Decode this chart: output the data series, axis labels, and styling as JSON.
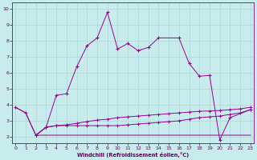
{
  "xlabel": "Windchill (Refroidissement éolien,°C)",
  "background_color": "#c8ecec",
  "grid_color": "#a8d8d8",
  "line_color": "#990099",
  "x_ticks": [
    0,
    1,
    2,
    3,
    4,
    5,
    6,
    7,
    8,
    9,
    10,
    11,
    12,
    13,
    14,
    15,
    16,
    17,
    18,
    19,
    20,
    21,
    22,
    23
  ],
  "y_ticks": [
    2,
    3,
    4,
    5,
    6,
    7,
    8,
    9,
    10
  ],
  "xlim": [
    -0.3,
    23.3
  ],
  "ylim": [
    1.6,
    10.4
  ],
  "line1_x": [
    0,
    1,
    2,
    3,
    4,
    5,
    6,
    7,
    8,
    9,
    10,
    11,
    12,
    13,
    14,
    16,
    17,
    18,
    19,
    20,
    21,
    23
  ],
  "line1_y": [
    3.85,
    3.5,
    2.1,
    2.6,
    4.6,
    4.7,
    6.4,
    7.7,
    8.2,
    9.8,
    7.5,
    7.85,
    7.4,
    7.6,
    8.2,
    8.2,
    6.6,
    5.8,
    5.85,
    1.8,
    3.2,
    3.7
  ],
  "line2_x": [
    0,
    1,
    2,
    3,
    4,
    5,
    6,
    7,
    8,
    9,
    10,
    11,
    12,
    13,
    14,
    15,
    16,
    17,
    18,
    19,
    20,
    21,
    22,
    23
  ],
  "line2_y": [
    3.85,
    3.5,
    2.1,
    2.1,
    2.1,
    2.1,
    2.1,
    2.1,
    2.1,
    2.1,
    2.1,
    2.1,
    2.1,
    2.1,
    2.1,
    2.1,
    2.1,
    2.1,
    2.1,
    2.1,
    2.1,
    2.1,
    2.1,
    2.1
  ],
  "line3_x": [
    2,
    3,
    4,
    5,
    6,
    7,
    8,
    9,
    10,
    11,
    12,
    13,
    14,
    15,
    16,
    17,
    18,
    19,
    20,
    21,
    22,
    23
  ],
  "line3_y": [
    2.1,
    2.6,
    2.7,
    2.7,
    2.7,
    2.7,
    2.7,
    2.7,
    2.7,
    2.75,
    2.8,
    2.85,
    2.9,
    2.95,
    3.0,
    3.1,
    3.2,
    3.25,
    3.3,
    3.4,
    3.5,
    3.7
  ],
  "line4_x": [
    2,
    3,
    4,
    5,
    6,
    7,
    8,
    9,
    10,
    11,
    12,
    13,
    14,
    15,
    16,
    17,
    18,
    19,
    20,
    21,
    22,
    23
  ],
  "line4_y": [
    2.1,
    2.6,
    2.7,
    2.75,
    2.85,
    2.95,
    3.05,
    3.1,
    3.2,
    3.25,
    3.3,
    3.35,
    3.4,
    3.45,
    3.5,
    3.55,
    3.6,
    3.62,
    3.65,
    3.7,
    3.75,
    3.85
  ]
}
